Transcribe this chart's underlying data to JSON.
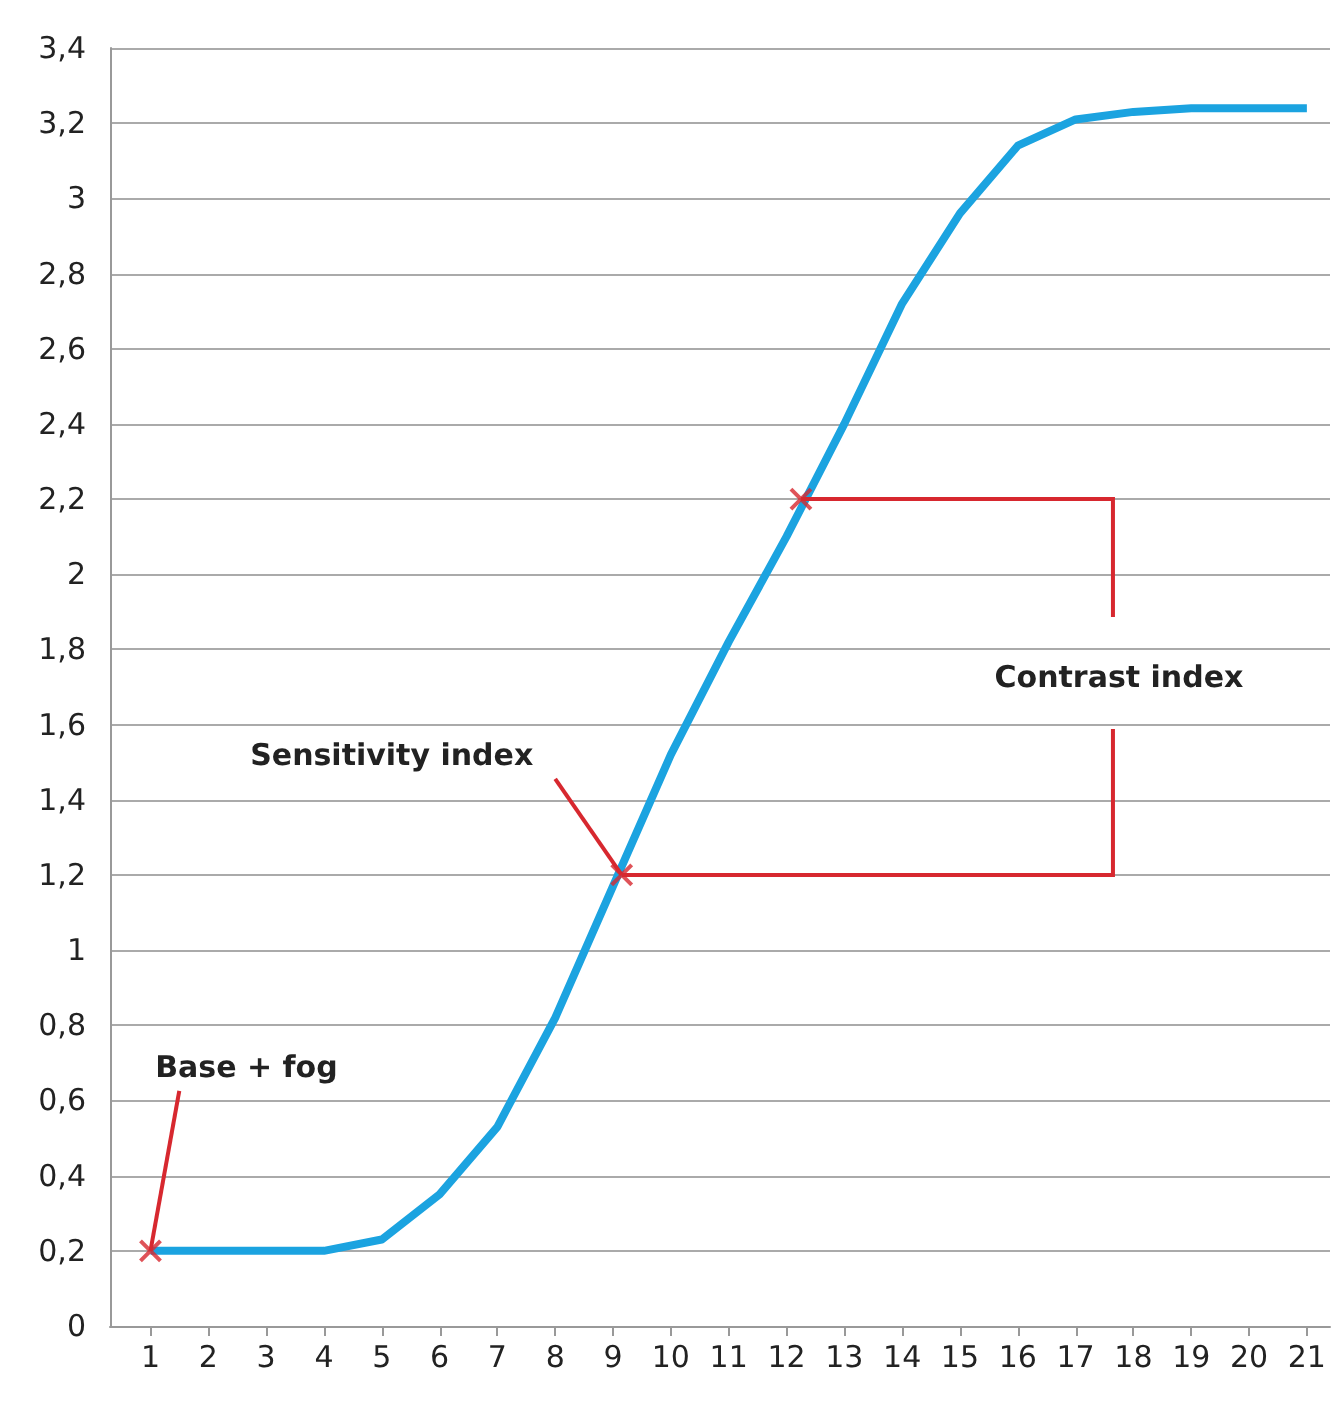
{
  "chart_data": {
    "type": "line",
    "x": [
      1,
      2,
      3,
      4,
      5,
      6,
      7,
      8,
      9,
      10,
      11,
      12,
      13,
      14,
      15,
      16,
      17,
      18,
      19,
      20,
      21
    ],
    "series": [
      {
        "color": "#1ba3e0",
        "values": [
          0.2,
          0.2,
          0.2,
          0.2,
          0.23,
          0.35,
          0.53,
          0.82,
          1.17,
          1.52,
          1.82,
          2.1,
          2.4,
          2.72,
          2.96,
          3.14,
          3.21,
          3.23,
          3.24,
          3.24,
          3.24
        ]
      },
      {
        "type": "scatter",
        "marker": "cross",
        "color": "#d7282f",
        "x": [
          1,
          9.15,
          12.25
        ],
        "values": [
          0.2,
          1.2,
          2.2
        ]
      }
    ],
    "xlim": [
      0.3,
      21.4
    ],
    "xticks": [
      1,
      2,
      3,
      4,
      5,
      6,
      7,
      8,
      9,
      10,
      11,
      12,
      13,
      14,
      15,
      16,
      17,
      18,
      19,
      20,
      21
    ],
    "ylim": [
      0,
      3.4
    ],
    "yticks": [
      0,
      {
        "value": 0.2,
        "label": "0,2"
      },
      {
        "value": 0.4,
        "label": "0,4"
      },
      {
        "value": 0.6,
        "label": "0,6"
      },
      {
        "value": 0.8,
        "label": "0,8"
      },
      1,
      {
        "value": 1.2,
        "label": "1,2"
      },
      {
        "value": 1.4,
        "label": "1,4"
      },
      {
        "value": 1.6,
        "label": "1,6"
      },
      {
        "value": 1.8,
        "label": "1,8"
      },
      2,
      {
        "value": 2.2,
        "label": "2,2"
      },
      {
        "value": 2.4,
        "label": "2,4"
      },
      {
        "value": 2.6,
        "label": "2,6"
      },
      {
        "value": 2.8,
        "label": "2,8"
      },
      3,
      {
        "value": 3.2,
        "label": "3,2"
      },
      {
        "value": 3.4,
        "label": "3,4"
      }
    ],
    "grid": "y",
    "annotations": [
      {
        "text": "Base + fog",
        "x": 1,
        "y": 0.2
      },
      {
        "text": "Sensitivity index",
        "x": 9.15,
        "y": 1.2
      },
      "Contrast index"
    ]
  }
}
